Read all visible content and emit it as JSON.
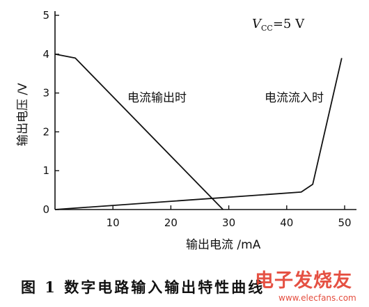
{
  "chart_data": {
    "type": "line",
    "xlabel": "输出电流 /mA",
    "ylabel": "输出电压 /V",
    "xlim": [
      0,
      52
    ],
    "ylim": [
      0,
      5
    ],
    "x_ticks": [
      10,
      20,
      30,
      40,
      50
    ],
    "y_ticks": [
      0,
      1,
      2,
      3,
      4,
      5
    ],
    "annotation": "V_CC=5 V",
    "series": [
      {
        "name": "电流输出时",
        "points": [
          [
            0,
            4.0
          ],
          [
            3.5,
            3.9
          ],
          [
            29,
            0.0
          ]
        ]
      },
      {
        "name": "电流流入时",
        "points": [
          [
            0,
            0.0
          ],
          [
            42.5,
            0.45
          ],
          [
            44.5,
            0.65
          ],
          [
            49.5,
            3.9
          ]
        ]
      }
    ],
    "grid": false
  },
  "caption": "图 1   数字电路输入输出特性曲线",
  "watermark": {
    "text": "电子发烧友",
    "url": "www.elecfans.com"
  }
}
